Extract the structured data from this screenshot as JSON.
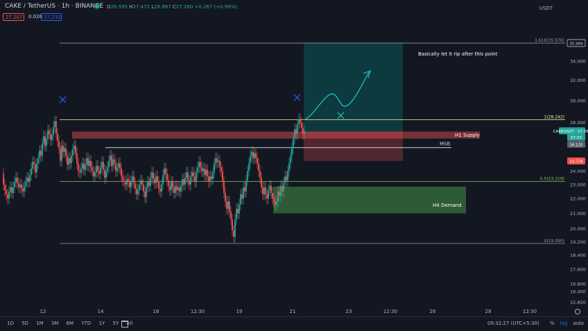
{
  "header": {
    "symbol": "CAKE / TetherUS · 1h · BINANCE",
    "ohlc": {
      "o_label": "O",
      "o": "26.995",
      "h_label": "H",
      "h": "27.472",
      "l_label": "L",
      "l": "26.987",
      "c_label": "C",
      "c": "27.260",
      "change": "+0.267 (+0.99%)"
    },
    "sell_price": "27.207",
    "spread": "0.026",
    "buy_price": "27.233",
    "currency": "USDT",
    "live_icon": "live-dot-icon"
  },
  "chart_data": {
    "type": "candlestick",
    "symbol": "CAKEUSDT",
    "yaxis": {
      "scale": "log",
      "range": [
        15.7,
        38.6
      ],
      "ticks": [
        "34.000",
        "32.000",
        "30.000",
        "28.000",
        "26.000",
        "24.000",
        "23.000",
        "22.000",
        "21.000",
        "20.000",
        "19.200",
        "18.400",
        "17.600",
        "16.800",
        "16.400",
        "15.850"
      ]
    },
    "xaxis": {
      "ticks": [
        "12",
        "14",
        "16",
        "12:30",
        "19",
        "21",
        "23",
        "12:30",
        "26",
        "28",
        "12:30"
      ]
    },
    "price_tags": [
      {
        "label": "35.984",
        "color": "#d1d4dc",
        "bg": "#131722"
      },
      {
        "label": "CAKEUSDT · 27.260",
        "color": "#ffffff",
        "bg": "#26a69a"
      },
      {
        "label": "57:33",
        "color": "#ffffff",
        "bg": "#26a69a"
      },
      {
        "label": "26.125",
        "color": "#ffffff",
        "bg": "#5d606b"
      },
      {
        "label": "24.778",
        "color": "#ffffff",
        "bg": "#ef5350"
      }
    ],
    "fib_levels": [
      {
        "label": "1.618(35.976)",
        "value": 35.976
      },
      {
        "label": "1(28.242)",
        "value": 28.242
      },
      {
        "label": "0.5(23.219)",
        "value": 23.219
      },
      {
        "label": "0(19.090)",
        "value": 19.09
      }
    ],
    "zones": [
      {
        "label": "H1 Supply",
        "top": 27.2,
        "bottom": 26.6,
        "color": "#ef5350"
      },
      {
        "label": "H4 Demand",
        "top": 22.85,
        "bottom": 21.0,
        "color": "#4caf50"
      }
    ],
    "msb": {
      "label": "MSB",
      "value": 25.85
    },
    "annotation": "Basically let it rip after this point",
    "position": {
      "entry": 27.2,
      "target": 35.984,
      "stop": 24.778
    },
    "close_path": [
      [
        0,
        23.8
      ],
      [
        2,
        23.0
      ],
      [
        4,
        22.6
      ],
      [
        6,
        22.3
      ],
      [
        8,
        22.0
      ],
      [
        10,
        22.5
      ],
      [
        12,
        22.8
      ],
      [
        14,
        22.4
      ],
      [
        16,
        22.8
      ],
      [
        18,
        23.2
      ],
      [
        20,
        23.5
      ],
      [
        22,
        23.1
      ],
      [
        24,
        22.8
      ],
      [
        26,
        23.0
      ],
      [
        28,
        22.7
      ],
      [
        30,
        22.5
      ],
      [
        32,
        22.9
      ],
      [
        34,
        23.2
      ],
      [
        36,
        23.5
      ],
      [
        38,
        23.2
      ],
      [
        40,
        23.7
      ],
      [
        42,
        24.2
      ],
      [
        44,
        24.7
      ],
      [
        46,
        24.5
      ],
      [
        48,
        23.9
      ],
      [
        50,
        24.6
      ],
      [
        52,
        25.0
      ],
      [
        54,
        25.6
      ],
      [
        56,
        25.2
      ],
      [
        58,
        26.2
      ],
      [
        60,
        26.8
      ],
      [
        62,
        26.0
      ],
      [
        64,
        26.6
      ],
      [
        66,
        27.3
      ],
      [
        68,
        27.0
      ],
      [
        70,
        26.5
      ],
      [
        72,
        26.9
      ],
      [
        74,
        27.6
      ],
      [
        76,
        28.1
      ],
      [
        78,
        27.0
      ],
      [
        80,
        26.4
      ],
      [
        82,
        25.8
      ],
      [
        84,
        24.8
      ],
      [
        86,
        26.0
      ],
      [
        88,
        25.5
      ],
      [
        90,
        25.8
      ],
      [
        92,
        25.2
      ],
      [
        94,
        24.5
      ],
      [
        96,
        25.0
      ],
      [
        98,
        24.6
      ],
      [
        100,
        25.2
      ],
      [
        102,
        25.7
      ],
      [
        104,
        26.0
      ],
      [
        106,
        25.4
      ],
      [
        108,
        24.6
      ],
      [
        110,
        24.0
      ],
      [
        112,
        23.9
      ],
      [
        114,
        24.2
      ],
      [
        116,
        24.6
      ],
      [
        118,
        24.1
      ],
      [
        120,
        24.5
      ],
      [
        122,
        25.0
      ],
      [
        124,
        24.4
      ],
      [
        126,
        24.8
      ],
      [
        128,
        24.3
      ],
      [
        130,
        24.0
      ],
      [
        132,
        23.6
      ],
      [
        134,
        23.9
      ],
      [
        136,
        24.4
      ],
      [
        138,
        24.0
      ],
      [
        140,
        23.8
      ],
      [
        142,
        24.3
      ],
      [
        144,
        24.7
      ],
      [
        146,
        24.1
      ],
      [
        148,
        23.5
      ],
      [
        150,
        24.0
      ],
      [
        152,
        24.3
      ],
      [
        154,
        24.8
      ],
      [
        156,
        25.2
      ],
      [
        158,
        24.4
      ],
      [
        160,
        24.9
      ],
      [
        162,
        24.6
      ],
      [
        164,
        24.0
      ],
      [
        166,
        24.3
      ],
      [
        168,
        24.6
      ],
      [
        170,
        24.2
      ],
      [
        172,
        23.6
      ],
      [
        174,
        23.3
      ],
      [
        176,
        23.2
      ],
      [
        178,
        23.0
      ],
      [
        180,
        23.4
      ],
      [
        182,
        23.2
      ],
      [
        184,
        22.8
      ],
      [
        186,
        23.3
      ],
      [
        188,
        23.6
      ],
      [
        190,
        23.1
      ],
      [
        192,
        22.7
      ],
      [
        194,
        22.3
      ],
      [
        196,
        22.6
      ],
      [
        198,
        23.0
      ],
      [
        200,
        23.3
      ],
      [
        202,
        23.0
      ],
      [
        204,
        22.5
      ],
      [
        206,
        22.1
      ],
      [
        208,
        22.8
      ],
      [
        210,
        23.2
      ],
      [
        212,
        22.9
      ],
      [
        214,
        23.5
      ],
      [
        216,
        23.9
      ],
      [
        218,
        23.4
      ],
      [
        220,
        23.1
      ],
      [
        222,
        23.6
      ],
      [
        224,
        23.2
      ],
      [
        226,
        22.7
      ],
      [
        228,
        22.5
      ],
      [
        230,
        23.0
      ],
      [
        232,
        23.7
      ],
      [
        234,
        24.2
      ],
      [
        236,
        23.8
      ],
      [
        238,
        23.3
      ],
      [
        240,
        22.9
      ],
      [
        242,
        22.6
      ],
      [
        244,
        23.2
      ],
      [
        246,
        22.8
      ],
      [
        248,
        22.4
      ],
      [
        250,
        22.9
      ],
      [
        252,
        22.6
      ],
      [
        254,
        22.8
      ],
      [
        256,
        22.5
      ],
      [
        258,
        22.9
      ],
      [
        260,
        23.4
      ],
      [
        262,
        23.0
      ],
      [
        264,
        23.5
      ],
      [
        266,
        23.9
      ],
      [
        268,
        23.3
      ],
      [
        270,
        23.0
      ],
      [
        272,
        23.6
      ],
      [
        274,
        23.9
      ],
      [
        276,
        23.6
      ],
      [
        278,
        23.2
      ],
      [
        280,
        23.9
      ],
      [
        282,
        24.3
      ],
      [
        284,
        24.7
      ],
      [
        286,
        24.3
      ],
      [
        288,
        24.0
      ],
      [
        290,
        24.2
      ],
      [
        292,
        23.7
      ],
      [
        294,
        24.1
      ],
      [
        296,
        23.6
      ],
      [
        298,
        23.2
      ],
      [
        300,
        23.6
      ],
      [
        302,
        23.4
      ],
      [
        304,
        23.9
      ],
      [
        306,
        24.6
      ],
      [
        308,
        25.0
      ],
      [
        310,
        24.7
      ],
      [
        312,
        24.8
      ],
      [
        314,
        24.3
      ],
      [
        316,
        24.0
      ],
      [
        318,
        23.2
      ],
      [
        320,
        22.4
      ],
      [
        322,
        21.8
      ],
      [
        324,
        21.3
      ],
      [
        326,
        21.8
      ],
      [
        328,
        21.1
      ],
      [
        330,
        20.6
      ],
      [
        332,
        19.9
      ],
      [
        334,
        19.5
      ],
      [
        336,
        20.6
      ],
      [
        338,
        21.3
      ],
      [
        340,
        21.0
      ],
      [
        342,
        21.6
      ],
      [
        344,
        22.3
      ],
      [
        346,
        22.0
      ],
      [
        348,
        22.8
      ],
      [
        350,
        22.5
      ],
      [
        352,
        23.3
      ],
      [
        354,
        24.0
      ],
      [
        356,
        24.6
      ],
      [
        358,
        25.2
      ],
      [
        360,
        25.5
      ],
      [
        362,
        25.0
      ],
      [
        364,
        25.4
      ],
      [
        366,
        25.0
      ],
      [
        368,
        24.6
      ],
      [
        370,
        24.0
      ],
      [
        372,
        23.5
      ],
      [
        374,
        22.8
      ],
      [
        376,
        22.3
      ],
      [
        378,
        22.8
      ],
      [
        380,
        22.3
      ],
      [
        382,
        22.0
      ],
      [
        384,
        22.6
      ],
      [
        386,
        22.9
      ],
      [
        388,
        22.4
      ],
      [
        390,
        22.0
      ],
      [
        392,
        21.8
      ],
      [
        394,
        21.6
      ],
      [
        396,
        21.8
      ],
      [
        398,
        22.5
      ],
      [
        400,
        22.2
      ],
      [
        402,
        22.9
      ],
      [
        404,
        22.5
      ],
      [
        406,
        23.1
      ],
      [
        408,
        23.6
      ],
      [
        410,
        23.3
      ],
      [
        412,
        24.0
      ],
      [
        414,
        24.6
      ],
      [
        416,
        25.2
      ],
      [
        418,
        25.8
      ],
      [
        420,
        26.6
      ],
      [
        422,
        27.4
      ],
      [
        424,
        27.0
      ],
      [
        426,
        27.8
      ],
      [
        428,
        28.3
      ],
      [
        430,
        28.0
      ],
      [
        432,
        27.5
      ],
      [
        434,
        27.0
      ],
      [
        436,
        27.26
      ]
    ]
  },
  "bottom_bar": {
    "ranges": [
      "1D",
      "5D",
      "1M",
      "3M",
      "6M",
      "YTD",
      "1Y",
      "5Y",
      "All"
    ],
    "calendar_icon": "calendar-icon",
    "clock": "09:32:27 (UTC+5:30)",
    "percent": "%",
    "log": "log",
    "auto": "auto",
    "settings_icon": "gear-icon"
  }
}
